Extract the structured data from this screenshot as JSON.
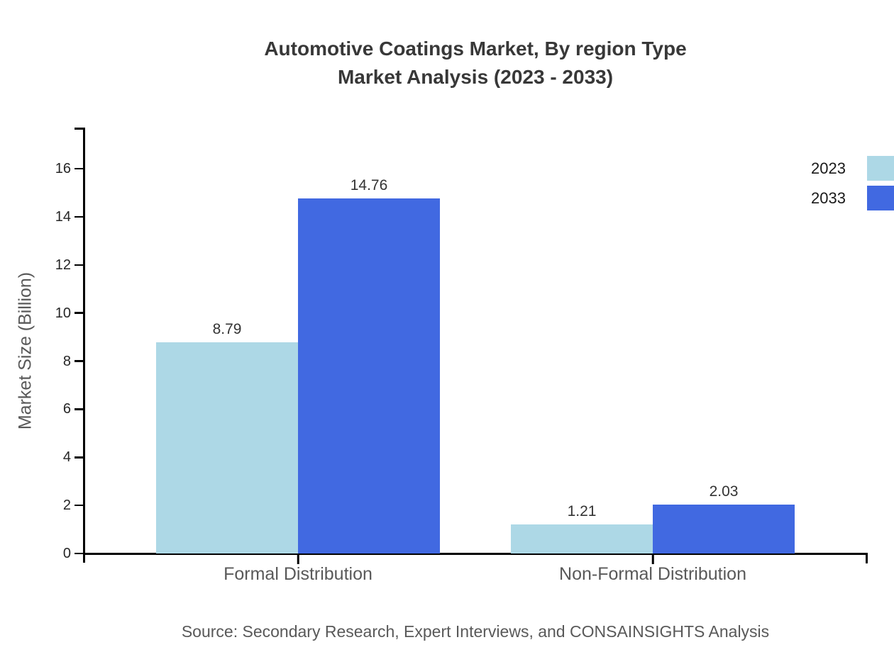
{
  "chart_data": {
    "type": "bar",
    "title_lines": [
      "Automotive Coatings Market, By region Type",
      "Market Analysis (2023 - 2033)"
    ],
    "ylabel": "Market Size (Billion)",
    "categories": [
      "Formal Distribution",
      "Non-Formal Distribution"
    ],
    "series": [
      {
        "name": "2023",
        "color": "#ADD8E6",
        "values": [
          8.79,
          1.21
        ],
        "value_labels": [
          "8.79",
          "1.21"
        ]
      },
      {
        "name": "2033",
        "color": "#4169E1",
        "values": [
          14.76,
          2.03
        ],
        "value_labels": [
          "14.76",
          "2.03"
        ]
      }
    ],
    "yticks": [
      "0",
      "2",
      "4",
      "6",
      "8",
      "10",
      "12",
      "14",
      "16"
    ],
    "ylim": [
      0,
      17.7
    ],
    "grid": false,
    "legend_position": "top-right",
    "source_note": "Source: Secondary Research, Expert Interviews, and CONSAINSIGHTS Analysis"
  },
  "colors": {
    "axis": "#000000",
    "title_text": "#383838",
    "tick_text": "#262626",
    "category_text": "#595959",
    "value_text": "#333333",
    "legend_text": "#1a1a1a",
    "source_text": "#595959",
    "background": "#ffffff"
  }
}
